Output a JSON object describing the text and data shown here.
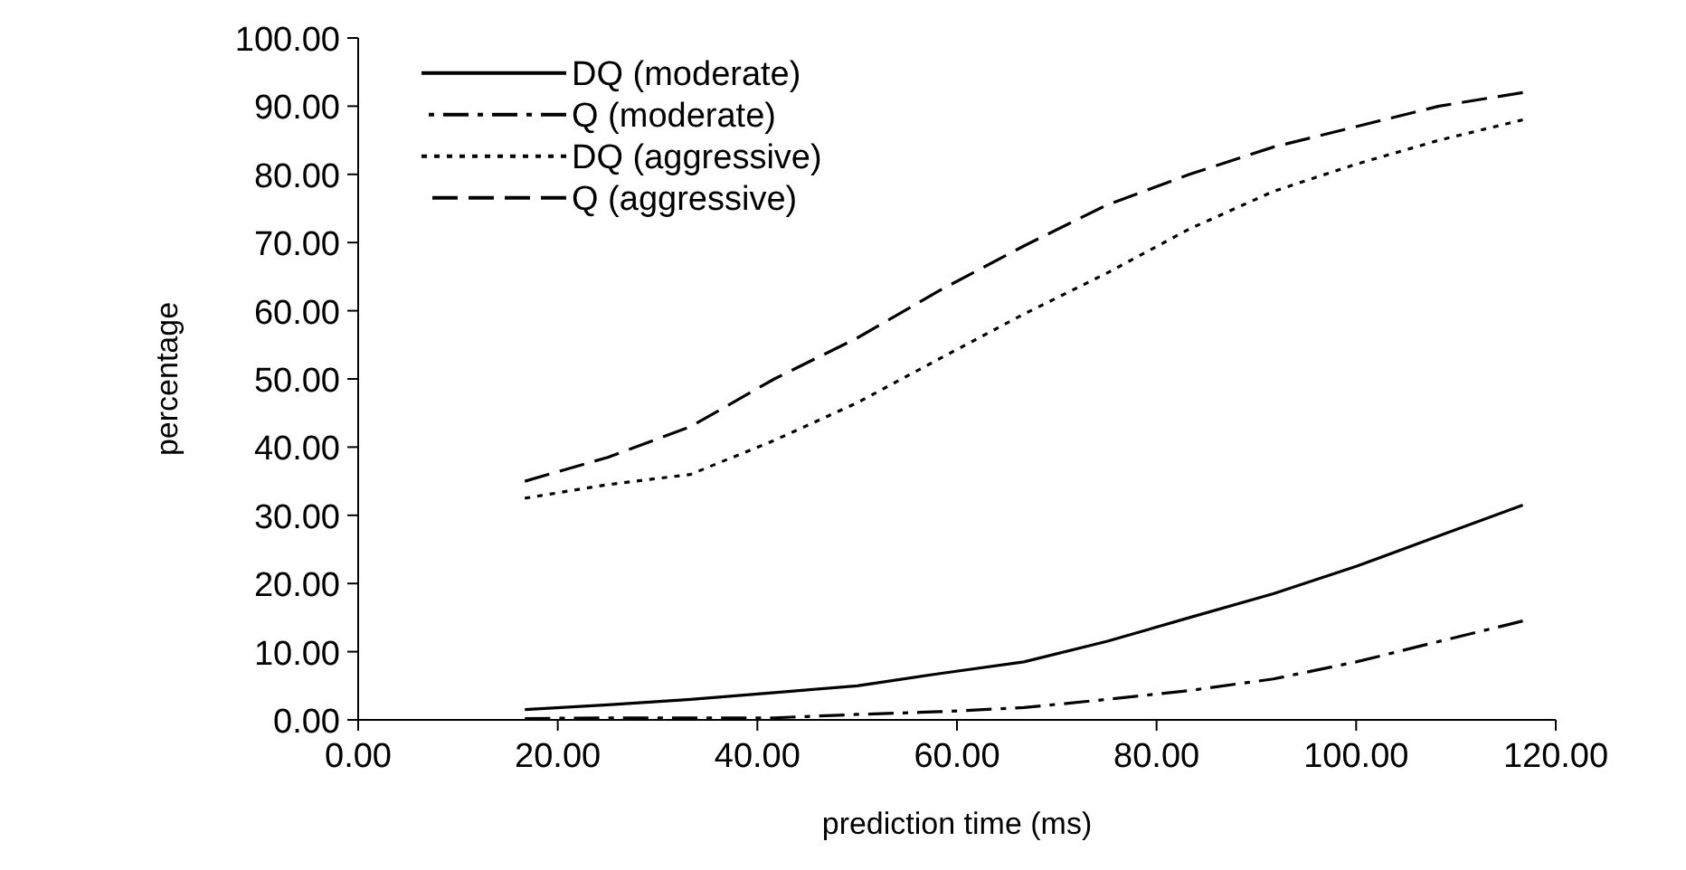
{
  "chart_data": {
    "type": "line",
    "xlabel": "prediction time (ms)",
    "ylabel": "percentage",
    "x": [
      16.7,
      25,
      33.3,
      41.7,
      50,
      58.3,
      66.7,
      75,
      83.3,
      91.7,
      100,
      108.3,
      116.7
    ],
    "series": [
      {
        "name": "DQ (moderate)",
        "color": "#000000",
        "line_style": "solid",
        "values": [
          1.5,
          2.2,
          3,
          4,
          5,
          6.8,
          8.5,
          11.5,
          15,
          18.5,
          22.5,
          27,
          31.5
        ]
      },
      {
        "name": "Q (moderate)",
        "color": "#000000",
        "line_style": "dashdot",
        "values": [
          0.2,
          0.3,
          0.3,
          0.3,
          0.8,
          1.2,
          1.8,
          3,
          4.3,
          6,
          8.5,
          11.5,
          14.5
        ]
      },
      {
        "name": "DQ (aggressive)",
        "color": "#000000",
        "line_style": "dotted",
        "values": [
          32.5,
          34.5,
          36,
          41,
          46.5,
          53,
          59.5,
          65.5,
          72,
          77.5,
          81.5,
          85,
          88
        ]
      },
      {
        "name": "Q (aggressive)",
        "color": "#000000",
        "line_style": "dashed",
        "values": [
          35,
          38.5,
          43,
          50,
          56,
          63,
          69.5,
          75.5,
          80,
          84,
          87,
          90,
          92
        ]
      }
    ],
    "xlim": [
      0,
      120
    ],
    "xticks": [
      {
        "value": 0,
        "label": "0.00"
      },
      {
        "value": 20,
        "label": "20.00"
      },
      {
        "value": 40,
        "label": "40.00"
      },
      {
        "value": 60,
        "label": "60.00"
      },
      {
        "value": 80,
        "label": "80.00"
      },
      {
        "value": 100,
        "label": "100.00"
      },
      {
        "value": 120,
        "label": "120.00"
      }
    ],
    "ylim": [
      0,
      100
    ],
    "yticks": [
      {
        "value": 0,
        "label": "0.00"
      },
      {
        "value": 10,
        "label": "10.00"
      },
      {
        "value": 20,
        "label": "20.00"
      },
      {
        "value": 30,
        "label": "30.00"
      },
      {
        "value": 40,
        "label": "40.00"
      },
      {
        "value": 50,
        "label": "50.00"
      },
      {
        "value": 60,
        "label": "60.00"
      },
      {
        "value": 70,
        "label": "70.00"
      },
      {
        "value": 80,
        "label": "80.00"
      },
      {
        "value": 90,
        "label": "90.00"
      },
      {
        "value": 100,
        "label": "100.00"
      }
    ],
    "grid": false,
    "legend": "top left",
    "marker": "none"
  }
}
